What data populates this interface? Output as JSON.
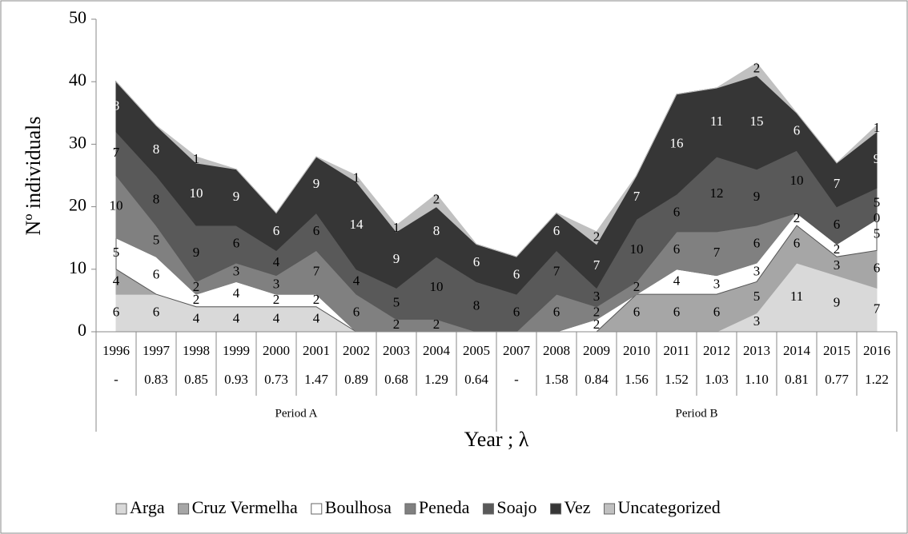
{
  "chart_data": {
    "type": "area",
    "y_axis_label": "Nº individuals",
    "x_axis_label": "Year ; λ",
    "categories": [
      "1996",
      "1997",
      "1998",
      "1999",
      "2000",
      "2001",
      "2002",
      "2003",
      "2004",
      "2005",
      "2007",
      "2008",
      "2009",
      "2010",
      "2011",
      "2012",
      "2013",
      "2014",
      "2015",
      "2016"
    ],
    "lambda": [
      "-",
      "0.83",
      "0.85",
      "0.93",
      "0.73",
      "1.47",
      "0.89",
      "0.68",
      "1.29",
      "0.64",
      "-",
      "1.58",
      "0.84",
      "1.56",
      "1.52",
      "1.03",
      "1.10",
      "0.81",
      "0.77",
      "1.22"
    ],
    "groups": [
      {
        "label": "Period A",
        "start": "1996",
        "end": "2005"
      },
      {
        "label": "Period B",
        "start": "2007",
        "end": "2016"
      }
    ],
    "ylim": [
      0,
      50
    ],
    "yticks": [
      0,
      10,
      20,
      30,
      40,
      50
    ],
    "stacked": true,
    "legend": "bottom",
    "series": [
      {
        "name": "Arga",
        "color": "#d9d9d9",
        "label_color": "#000000",
        "values": [
          6,
          6,
          4,
          4,
          4,
          4,
          0,
          0,
          0,
          0,
          0,
          0,
          0,
          0,
          0,
          0,
          3,
          11,
          9,
          7
        ]
      },
      {
        "name": "Cruz Vermelha",
        "color": "#a6a6a6",
        "label_color": "#000000",
        "values": [
          4,
          0,
          0,
          0,
          0,
          0,
          0,
          0,
          0,
          0,
          0,
          0,
          0,
          6,
          6,
          6,
          5,
          6,
          3,
          6
        ]
      },
      {
        "name": "Boulhosa",
        "color": "#ffffff",
        "label_color": "#000000",
        "values": [
          5,
          6,
          2,
          4,
          2,
          2,
          0,
          0,
          0,
          0,
          0,
          0,
          2,
          0,
          4,
          3,
          3,
          2,
          2,
          5
        ]
      },
      {
        "name": "Peneda",
        "color": "#808080",
        "label_color": "#000000",
        "values": [
          10,
          5,
          2,
          3,
          3,
          7,
          6,
          2,
          2,
          0,
          0,
          6,
          2,
          2,
          6,
          7,
          6,
          0,
          0,
          0
        ],
        "value_labels": [
          "10",
          "5",
          "2",
          "3",
          "3",
          "7",
          "6",
          "2",
          "2",
          null,
          null,
          "6",
          "2",
          "2",
          "6",
          "7",
          "6",
          null,
          null,
          "0"
        ]
      },
      {
        "name": "Soajo",
        "color": "#595959",
        "label_color": "#000000",
        "values": [
          7,
          8,
          9,
          6,
          4,
          6,
          4,
          5,
          10,
          8,
          6,
          7,
          3,
          10,
          6,
          12,
          9,
          10,
          6,
          5
        ]
      },
      {
        "name": "Vez",
        "color": "#363636",
        "label_color": "#ffffff",
        "values": [
          8,
          8,
          10,
          9,
          6,
          9,
          14,
          9,
          8,
          6,
          6,
          6,
          7,
          7,
          16,
          11,
          15,
          6,
          7,
          9
        ]
      },
      {
        "name": "Uncategorized",
        "color": "#c0c0c0",
        "label_color": "#000000",
        "values": [
          0,
          0,
          1,
          0,
          0,
          0,
          1,
          1,
          2,
          0,
          0,
          0,
          2,
          0,
          0,
          0,
          2,
          0,
          0,
          1
        ]
      }
    ]
  }
}
